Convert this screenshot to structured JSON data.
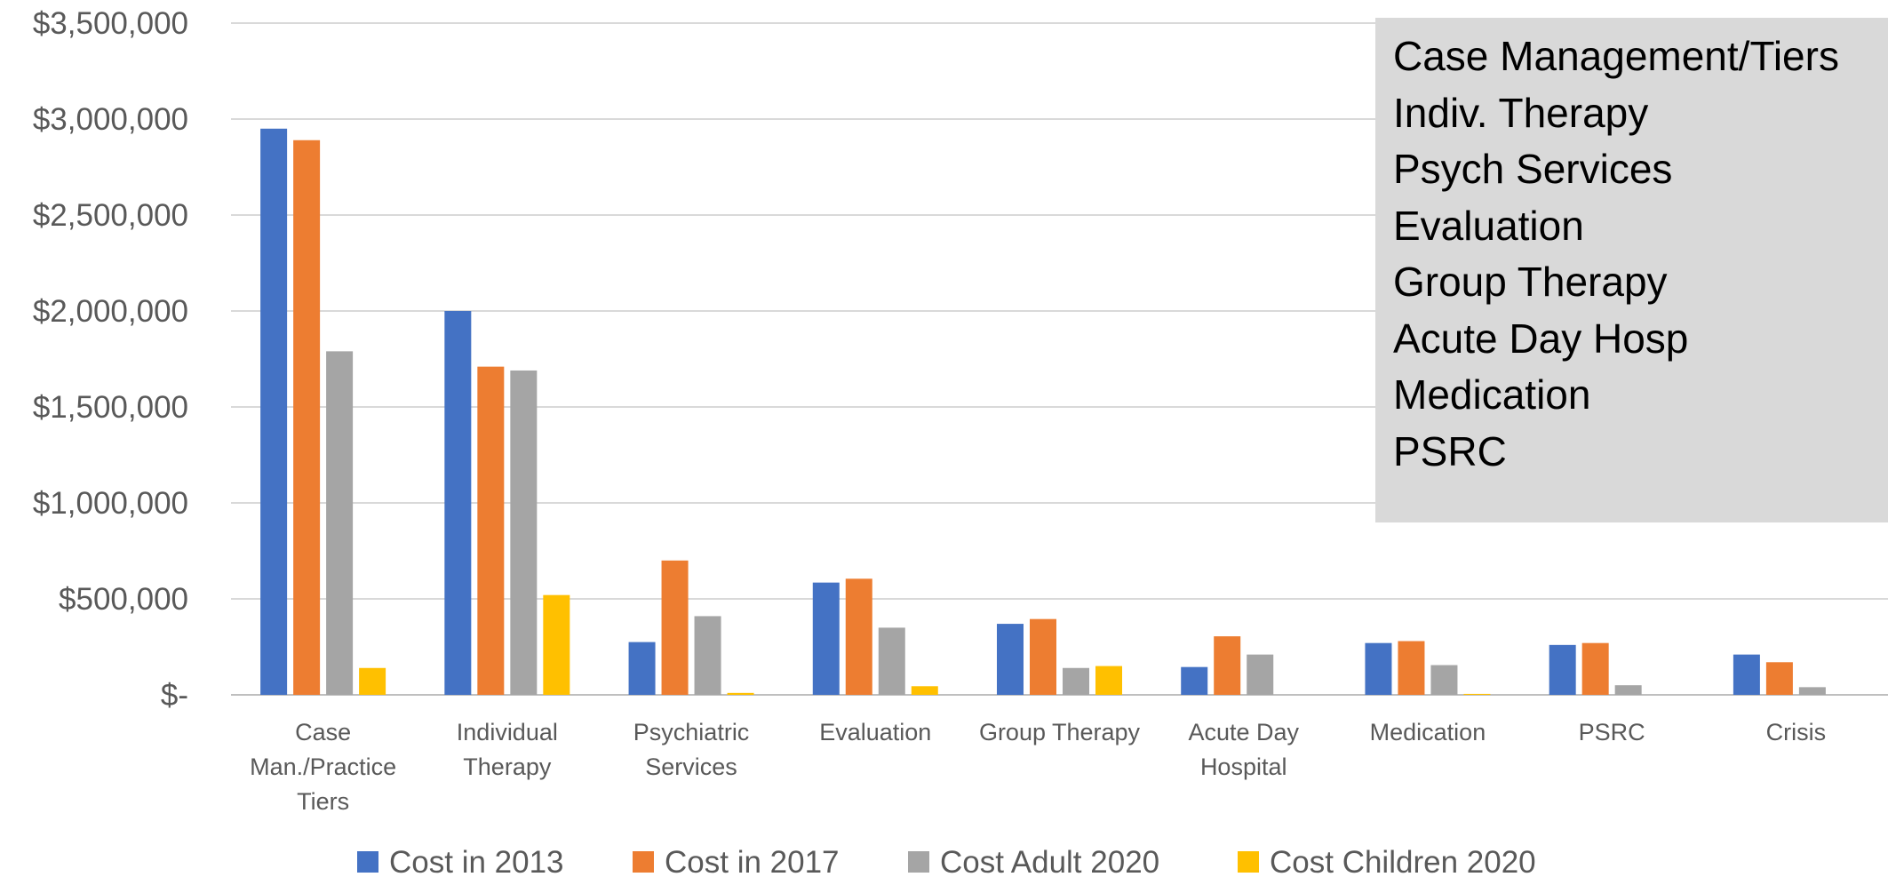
{
  "chart_data": {
    "type": "bar",
    "categories": [
      [
        "Case",
        "Man./Practice",
        "Tiers"
      ],
      [
        "Individual",
        "Therapy"
      ],
      [
        "Psychiatric",
        "Services"
      ],
      [
        "Evaluation"
      ],
      [
        "Group Therapy"
      ],
      [
        "Acute Day",
        "Hospital"
      ],
      [
        "Medication"
      ],
      [
        "PSRC"
      ],
      [
        "Crisis"
      ]
    ],
    "series": [
      {
        "name": "Cost in 2013",
        "color": "#4472c4",
        "values": [
          2950000,
          2000000,
          275000,
          585000,
          370000,
          145000,
          270000,
          260000,
          210000
        ]
      },
      {
        "name": "Cost in 2017",
        "color": "#ed7d31",
        "values": [
          2890000,
          1710000,
          700000,
          605000,
          395000,
          305000,
          280000,
          270000,
          170000
        ]
      },
      {
        "name": "Cost Adult 2020",
        "color": "#a5a5a5",
        "values": [
          1790000,
          1690000,
          410000,
          350000,
          140000,
          210000,
          155000,
          50000,
          40000
        ]
      },
      {
        "name": "Cost Children 2020",
        "color": "#ffc000",
        "values": [
          140000,
          520000,
          10000,
          45000,
          150000,
          0,
          5000,
          0,
          0
        ]
      }
    ],
    "yticks": [
      "$-",
      "$500,000",
      "$1,000,000",
      "$1,500,000",
      "$2,000,000",
      "$2,500,000",
      "$3,000,000",
      "$3,500,000"
    ],
    "ylim": [
      0,
      3500000
    ],
    "grid": true,
    "legend": "bottom",
    "title": "",
    "xlabel": "",
    "ylabel": ""
  },
  "note_box": {
    "lines": [
      "Case Management/Tiers",
      "Indiv. Therapy",
      "Psych Services",
      "Evaluation",
      "Group Therapy",
      "Acute Day Hosp",
      "Medication",
      "PSRC"
    ]
  }
}
